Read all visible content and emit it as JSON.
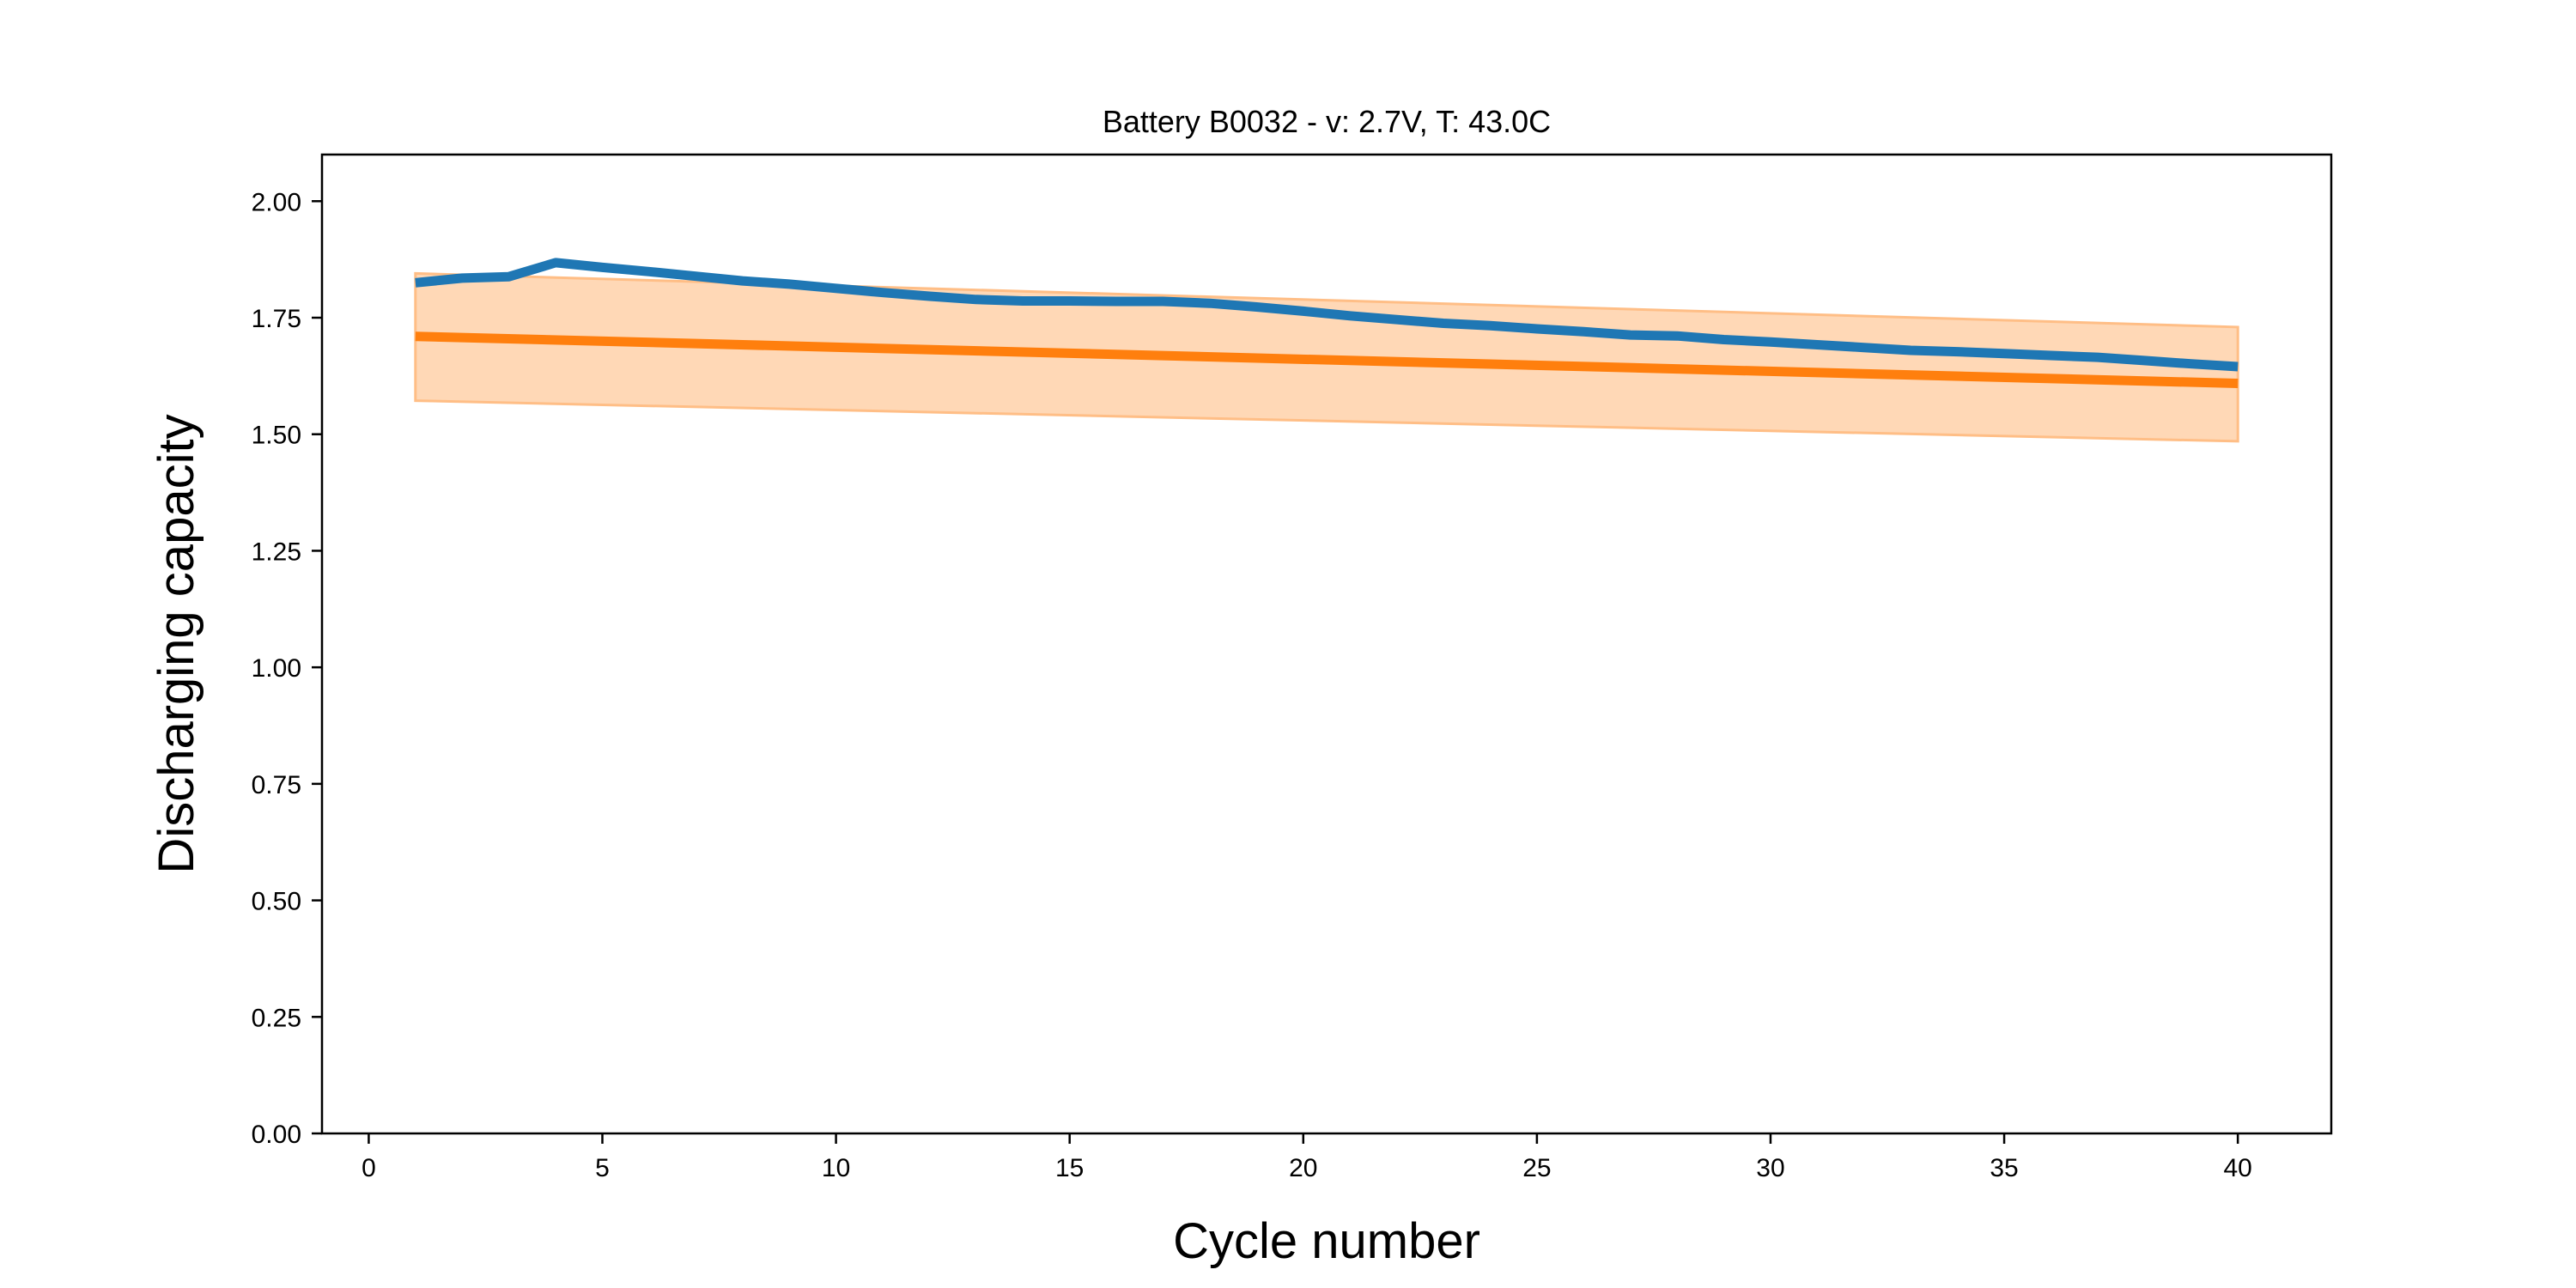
{
  "chart_data": {
    "type": "line",
    "title": "Battery B0032 - v: 2.7V, T: 43.0C",
    "xlabel": "Cycle number",
    "ylabel": "Discharging capacity",
    "xlim": [
      -1,
      42
    ],
    "ylim": [
      0,
      2.1
    ],
    "x_ticks": [
      0,
      5,
      10,
      15,
      20,
      25,
      30,
      35,
      40
    ],
    "y_ticks": [
      0.0,
      0.25,
      0.5,
      0.75,
      1.0,
      1.25,
      1.5,
      1.75,
      2.0
    ],
    "grid": false,
    "colors": {
      "measured": "#1f77b4",
      "predicted": "#ff7f0e",
      "band": "#ffbe86"
    },
    "series": [
      {
        "style": "line",
        "color": "#1f77b4",
        "x": [
          1,
          2,
          3,
          4,
          5,
          6,
          7,
          8,
          9,
          10,
          11,
          12,
          13,
          14,
          15,
          16,
          17,
          18,
          19,
          20,
          21,
          22,
          23,
          24,
          25,
          26,
          27,
          28,
          29,
          30,
          31,
          32,
          33,
          34,
          35,
          36,
          37,
          38,
          39,
          40
        ],
        "values": [
          1.825,
          1.835,
          1.838,
          1.868,
          1.858,
          1.849,
          1.839,
          1.829,
          1.822,
          1.813,
          1.804,
          1.796,
          1.789,
          1.786,
          1.786,
          1.785,
          1.785,
          1.781,
          1.773,
          1.764,
          1.754,
          1.746,
          1.738,
          1.733,
          1.726,
          1.72,
          1.713,
          1.711,
          1.703,
          1.698,
          1.692,
          1.686,
          1.68,
          1.677,
          1.673,
          1.669,
          1.665,
          1.658,
          1.651,
          1.645
        ]
      },
      {
        "style": "line",
        "color": "#ff7f0e",
        "x": [
          1,
          40
        ],
        "values": [
          1.71,
          1.609
        ]
      }
    ],
    "band": {
      "color": "#ffbe86",
      "x": [
        1,
        40
      ],
      "upper": [
        1.845,
        1.73
      ],
      "lower": [
        1.572,
        1.485
      ]
    }
  }
}
